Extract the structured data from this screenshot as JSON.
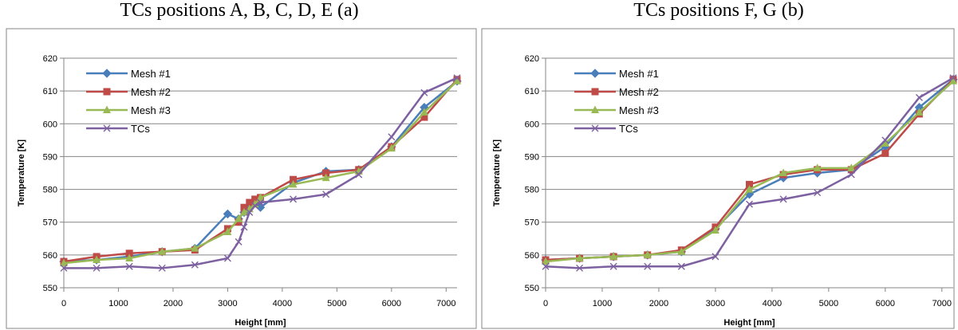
{
  "colors": {
    "mesh1": "#4a7ebb",
    "mesh2": "#be4b48",
    "mesh3": "#98b954",
    "tcs": "#7d60a0",
    "grid": "#868686",
    "frame": "#868686"
  },
  "chart_data": [
    {
      "type": "line",
      "title": "TCs positions A, B, C, D, E (a)",
      "xlabel": "Height [mm]",
      "ylabel": "Temperature [K]",
      "xlim": [
        0,
        7200
      ],
      "ylim": [
        550,
        620
      ],
      "xticks": [
        0,
        1000,
        2000,
        3000,
        4000,
        5000,
        6000,
        7000
      ],
      "yticks": [
        550,
        560,
        570,
        580,
        590,
        600,
        610,
        620
      ],
      "xtick_labels": [
        "0",
        "1000",
        "2000",
        "3000",
        "4000",
        "5000",
        "6000",
        "7000"
      ],
      "ytick_labels": [
        "550",
        "560",
        "570",
        "580",
        "590",
        "600",
        "610",
        "620"
      ],
      "grid": "horizontal",
      "legend_position": "top-left",
      "series": [
        {
          "name": "Mesh #1",
          "marker": "diamond",
          "color_key": "mesh1",
          "x": [
            0,
            600,
            1200,
            1800,
            2400,
            3000,
            3200,
            3300,
            3400,
            3500,
            3600,
            4200,
            4800,
            5400,
            6000,
            6600,
            7200
          ],
          "y": [
            558,
            558.5,
            559.5,
            561,
            562,
            572.5,
            571,
            573,
            575,
            576,
            574.5,
            582,
            585.5,
            586,
            593,
            605,
            613
          ]
        },
        {
          "name": "Mesh #2",
          "marker": "square",
          "color_key": "mesh2",
          "x": [
            0,
            600,
            1200,
            1800,
            2400,
            3000,
            3200,
            3300,
            3400,
            3500,
            3600,
            4200,
            4800,
            5400,
            6000,
            6600,
            7200
          ],
          "y": [
            558,
            559.5,
            560.5,
            561,
            561.5,
            568,
            570,
            574.5,
            576,
            577,
            577.5,
            583,
            585,
            586,
            593,
            602,
            613.5
          ]
        },
        {
          "name": "Mesh #3",
          "marker": "triangle",
          "color_key": "mesh3",
          "x": [
            0,
            600,
            1200,
            1800,
            2400,
            3000,
            3200,
            3300,
            3400,
            3500,
            3600,
            4200,
            4800,
            5400,
            6000,
            6600,
            7200
          ],
          "y": [
            557.5,
            558.5,
            559,
            561,
            562,
            567,
            571,
            573,
            574,
            575.5,
            577.5,
            581.5,
            583.5,
            585.5,
            592.5,
            603.5,
            613
          ]
        },
        {
          "name": "TCs",
          "marker": "x",
          "color_key": "tcs",
          "x": [
            0,
            600,
            1200,
            1800,
            2400,
            3000,
            3200,
            3300,
            3400,
            3500,
            3600,
            4200,
            4800,
            5400,
            6000,
            6600,
            7200
          ],
          "y": [
            556,
            556,
            556.5,
            556,
            557,
            559,
            564,
            568.5,
            573,
            575,
            576,
            577,
            578.5,
            584.5,
            596,
            609.5,
            614
          ]
        }
      ]
    },
    {
      "type": "line",
      "title": "TCs positions F, G (b)",
      "xlabel": "Height [mm]",
      "ylabel": "Temperature [K]",
      "xlim": [
        0,
        7200
      ],
      "ylim": [
        550,
        620
      ],
      "xticks": [
        0,
        1000,
        2000,
        3000,
        4000,
        5000,
        6000,
        7000
      ],
      "yticks": [
        550,
        560,
        570,
        580,
        590,
        600,
        610,
        620
      ],
      "xtick_labels": [
        "0",
        "1000",
        "2000",
        "3000",
        "4000",
        "5000",
        "6000",
        "7000"
      ],
      "ytick_labels": [
        "550",
        "560",
        "570",
        "580",
        "590",
        "600",
        "610",
        "620"
      ],
      "grid": "horizontal",
      "legend_position": "top-left",
      "series": [
        {
          "name": "Mesh #1",
          "marker": "diamond",
          "color_key": "mesh1",
          "x": [
            0,
            600,
            1200,
            1800,
            2400,
            3000,
            3600,
            4200,
            4800,
            5400,
            6000,
            6600,
            7200
          ],
          "y": [
            558.5,
            559,
            559.5,
            560,
            561,
            568,
            578.5,
            583.5,
            585,
            586,
            593,
            605,
            613.5
          ]
        },
        {
          "name": "Mesh #2",
          "marker": "square",
          "color_key": "mesh2",
          "x": [
            0,
            600,
            1200,
            1800,
            2400,
            3000,
            3600,
            4200,
            4800,
            5400,
            6000,
            6600,
            7200
          ],
          "y": [
            558.5,
            559,
            559.5,
            560,
            561.5,
            568.5,
            581.5,
            584.5,
            586,
            586,
            591,
            603,
            613.5
          ]
        },
        {
          "name": "Mesh #3",
          "marker": "triangle",
          "color_key": "mesh3",
          "x": [
            0,
            600,
            1200,
            1800,
            2400,
            3000,
            3600,
            4200,
            4800,
            5400,
            6000,
            6600,
            7200
          ],
          "y": [
            558,
            559,
            559.5,
            560,
            561,
            567.5,
            580,
            585,
            586.5,
            586.5,
            594,
            603.5,
            613
          ]
        },
        {
          "name": "TCs",
          "marker": "x",
          "color_key": "tcs",
          "x": [
            0,
            600,
            1200,
            1800,
            2400,
            3000,
            3600,
            4200,
            4800,
            5400,
            6000,
            6600,
            7200
          ],
          "y": [
            556.5,
            556,
            556.5,
            556.5,
            556.5,
            559.5,
            575.5,
            577,
            579,
            584.5,
            595,
            608,
            614
          ]
        }
      ]
    }
  ]
}
